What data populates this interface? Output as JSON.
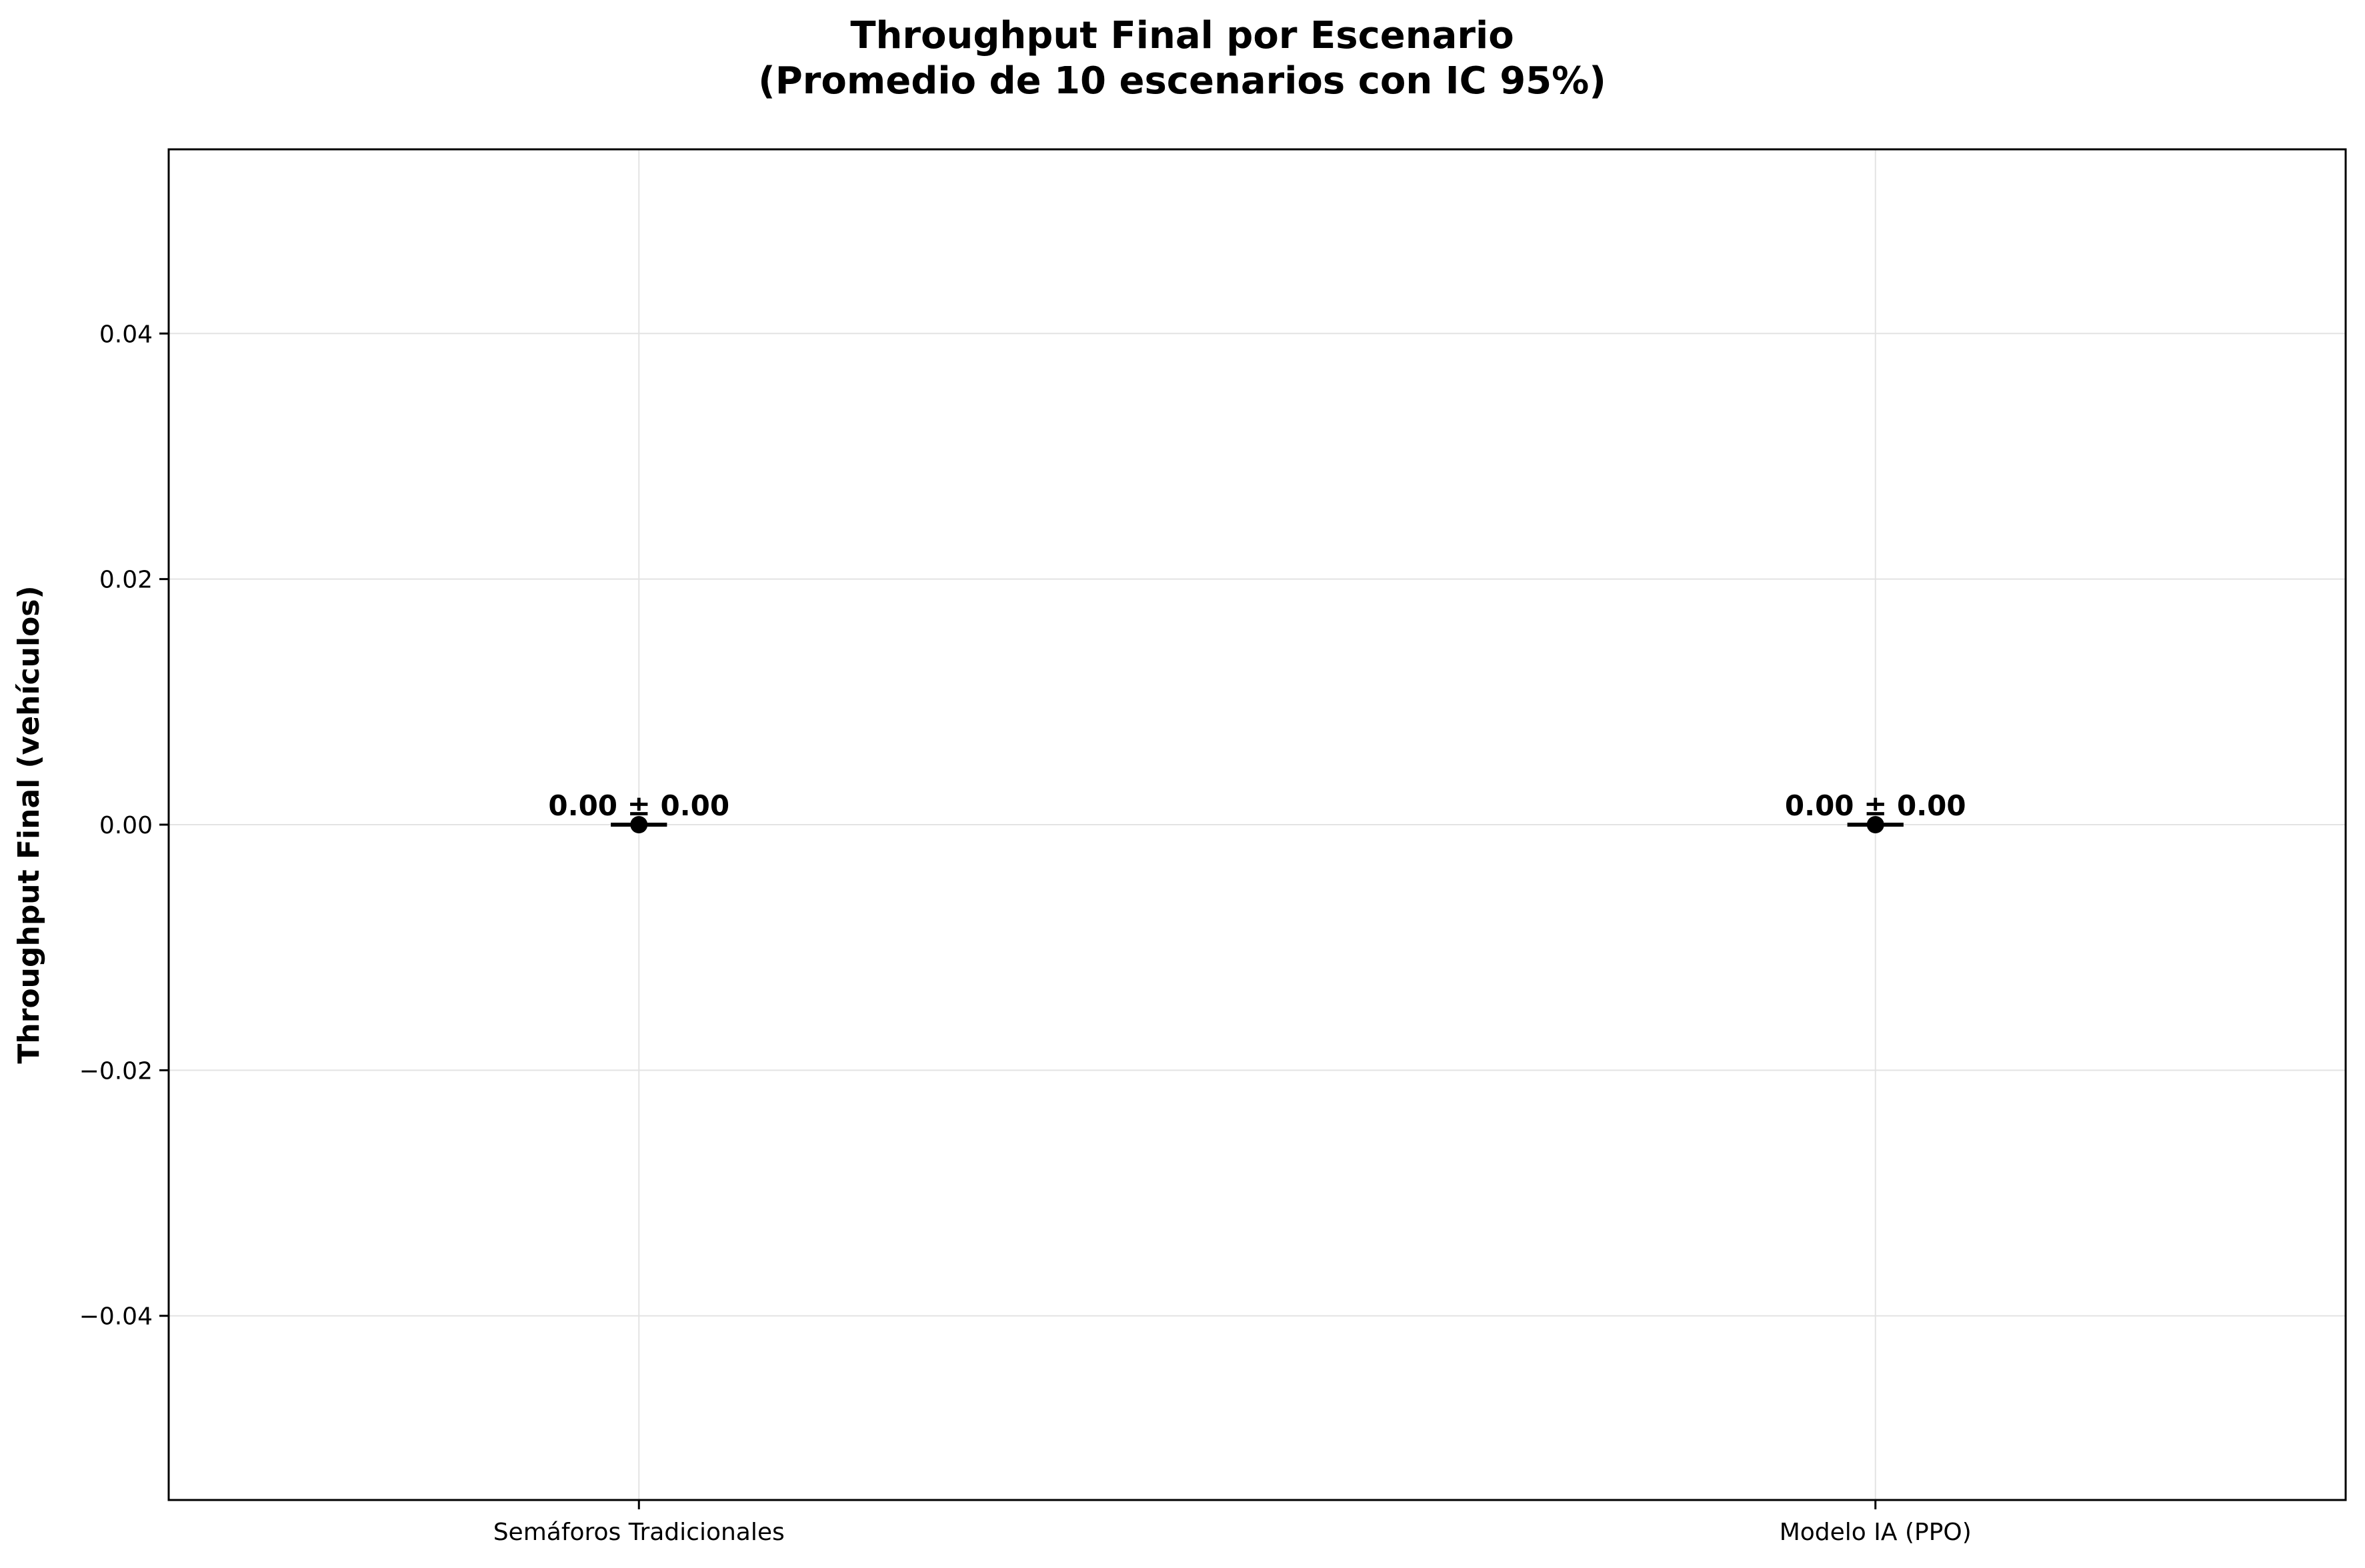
{
  "chart_data": {
    "type": "scatter",
    "title": "Throughput Final por Escenario",
    "subtitle": "(Promedio de 10 escenarios con IC 95%)",
    "xlabel": "",
    "ylabel": "Throughput Final (vehículos)",
    "categories": [
      "Semáforos Tradicionales",
      "Modelo IA (PPO)"
    ],
    "values": [
      0.0,
      0.0
    ],
    "errors": [
      0.0,
      0.0
    ],
    "data_labels": [
      "0.00 ± 0.00",
      "0.00 ± 0.00"
    ],
    "ylim": [
      -0.055,
      0.055
    ],
    "yticks": [
      -0.04,
      -0.02,
      0.0,
      0.02,
      0.04
    ],
    "ytick_labels": [
      "−0.04",
      "−0.02",
      "0.00",
      "0.02",
      "0.04"
    ],
    "grid": true,
    "legend": "none",
    "colors": {
      "marker": "#000000",
      "grid": "#e3e3e3",
      "axes": "#000000"
    }
  }
}
